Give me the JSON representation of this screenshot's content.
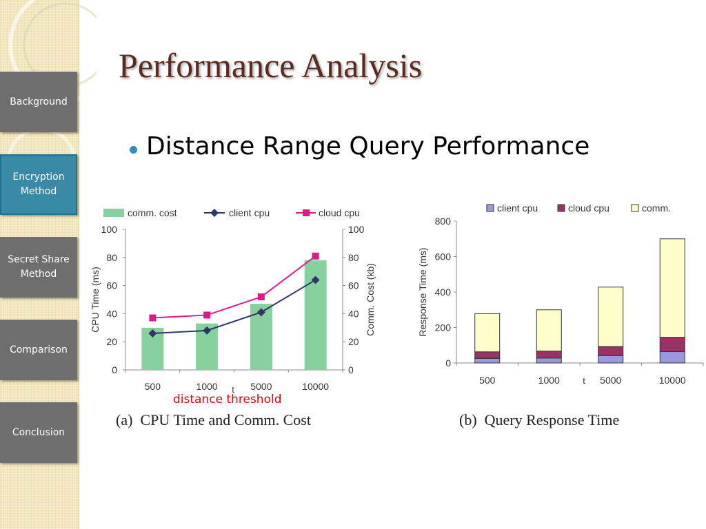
{
  "sidebar": {
    "items": [
      {
        "label": "Background",
        "active": false
      },
      {
        "label": "Encryption Method",
        "active": true
      },
      {
        "label": "Secret Share Method",
        "active": false
      },
      {
        "label": "Comparison",
        "active": false
      },
      {
        "label": "Conclusion",
        "active": false
      }
    ]
  },
  "slide": {
    "title": "Performance Analysis",
    "bullet": "Distance Range Query Performance",
    "annotation": "distance threshold",
    "caption_a": "(a)  CPU Time and Comm. Cost",
    "caption_b": "(b)  Query Response Time"
  },
  "colors": {
    "title": "#5c2a1e",
    "bullet": "#2e8fb0",
    "nav_inactive": "#6e6e6e",
    "nav_active": "#3a8aa6",
    "annotation": "#e60000"
  },
  "chart_data": [
    {
      "type": "bar",
      "categories": [
        "500",
        "1000",
        "5000",
        "10000"
      ],
      "xlabel": "t",
      "ylabel": "CPU Time (ms)",
      "ylabel_right": "Comm. Cost (kb)",
      "ylim": [
        0,
        100
      ],
      "ylim_right": [
        0,
        100
      ],
      "yticks": [
        "0",
        "20",
        "40",
        "60",
        "80",
        "100"
      ],
      "legend_position": "top",
      "grid": false,
      "series": [
        {
          "name": "comm. cost",
          "kind": "bar",
          "axis": "right",
          "color": "#88d09e",
          "values": [
            30,
            33,
            47,
            78
          ]
        },
        {
          "name": "client cpu",
          "kind": "line",
          "axis": "left",
          "marker": "diamond",
          "color": "#2f3766",
          "values": [
            26,
            28,
            41,
            64
          ]
        },
        {
          "name": "cloud cpu",
          "kind": "line",
          "axis": "left",
          "marker": "square",
          "color": "#e0198a",
          "values": [
            37,
            39,
            52,
            81
          ]
        }
      ]
    },
    {
      "type": "bar",
      "stacked": true,
      "categories": [
        "500",
        "1000",
        "5000",
        "10000"
      ],
      "xlabel": "t",
      "ylabel": "Response Time (ms)",
      "ylim": [
        0,
        800
      ],
      "yticks": [
        "0",
        "200",
        "400",
        "600",
        "800"
      ],
      "legend_position": "top",
      "grid": false,
      "series": [
        {
          "name": "client cpu",
          "color": "#9999dd",
          "values": [
            26,
            28,
            41,
            64
          ]
        },
        {
          "name": "cloud cpu",
          "color": "#993366",
          "values": [
            37,
            39,
            52,
            81
          ]
        },
        {
          "name": "comm.",
          "color": "#ffffcc",
          "values": [
            215,
            233,
            335,
            555
          ]
        }
      ]
    }
  ]
}
